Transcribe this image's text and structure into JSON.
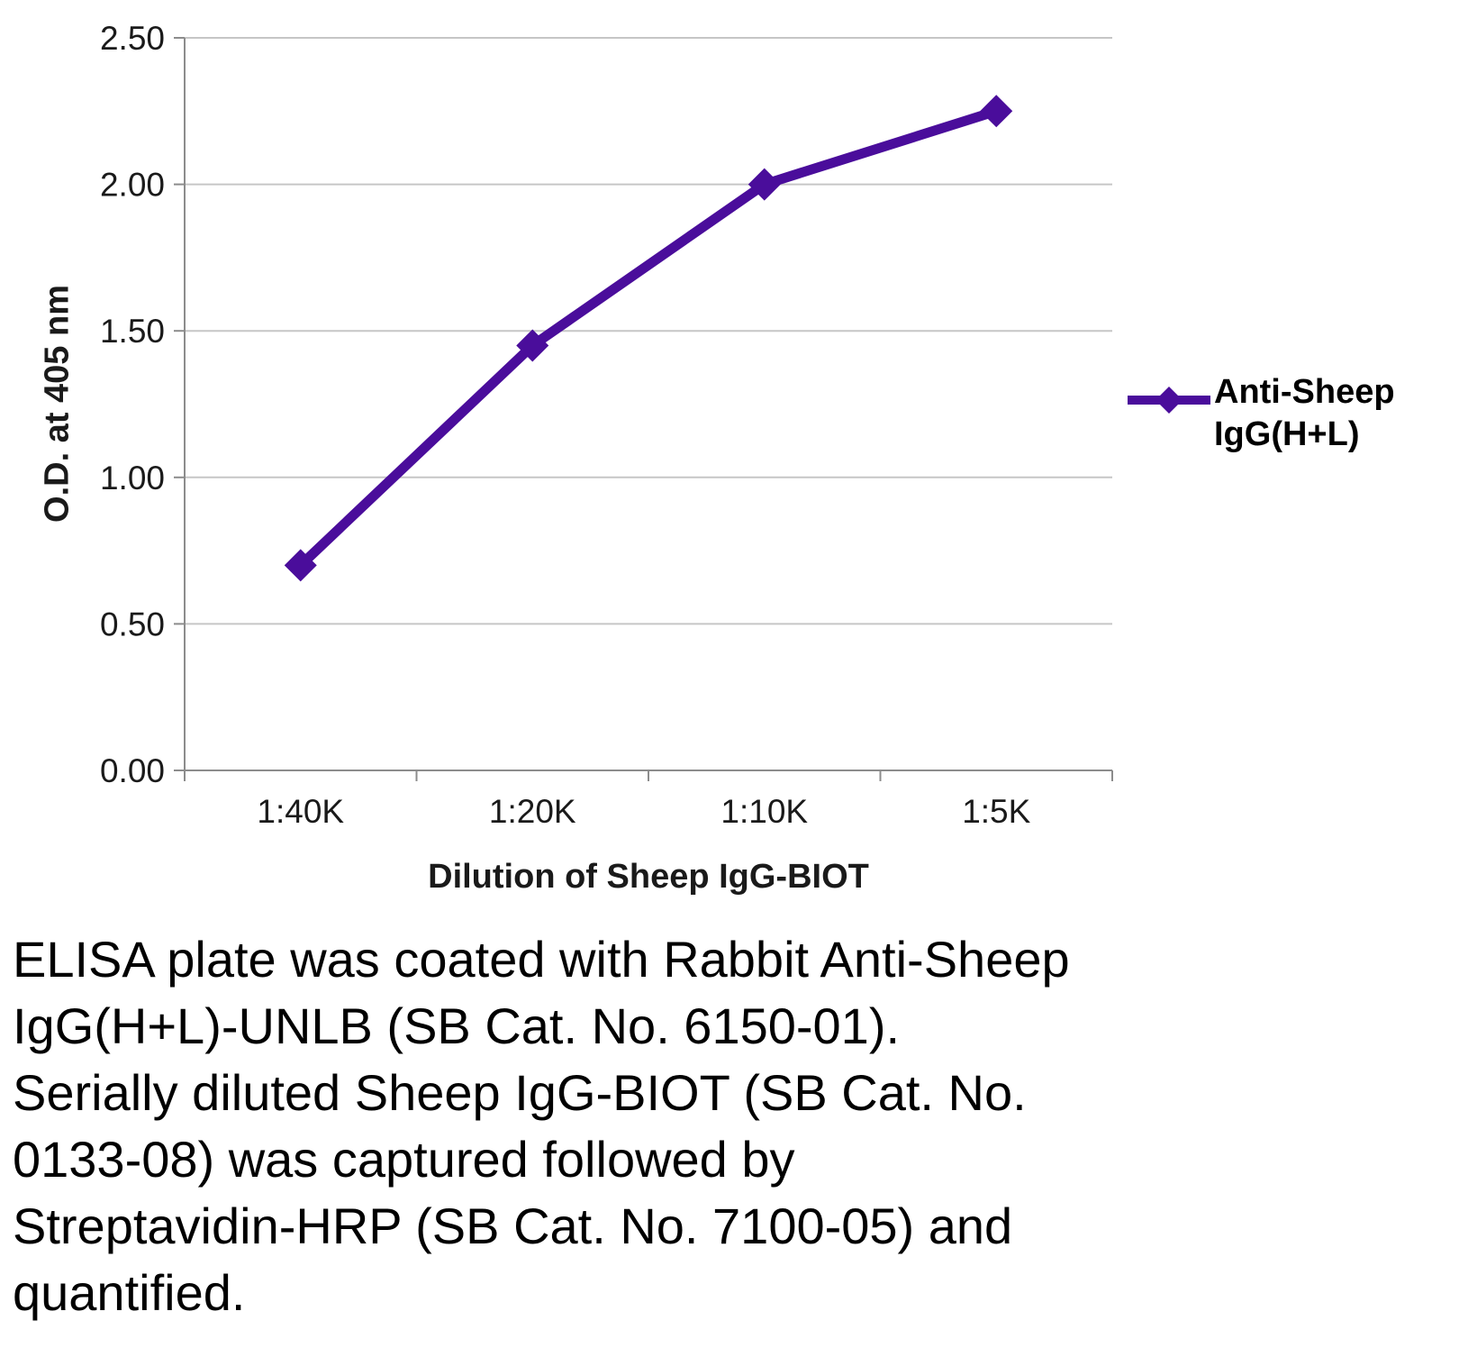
{
  "chart_data": {
    "type": "line",
    "categories": [
      "1:40K",
      "1:20K",
      "1:10K",
      "1:5K"
    ],
    "series": [
      {
        "name": "Anti-Sheep IgG(H+L)",
        "values": [
          0.7,
          1.45,
          2.0,
          2.25
        ],
        "color": "#4a0d9b",
        "marker": "diamond"
      }
    ],
    "title": "",
    "xlabel": "Dilution of Sheep IgG-BIOT",
    "ylabel": "O.D. at 405 nm",
    "ylim": [
      0,
      2.5
    ],
    "yticks": [
      0,
      0.5,
      1.0,
      1.5,
      2.0,
      2.5
    ],
    "ytick_labels": [
      "0.00",
      "0.50",
      "1.00",
      "1.50",
      "2.00",
      "2.50"
    ],
    "grid": "horizontal",
    "legend_position": "right",
    "colors": {
      "gridline": "#c6c6c6",
      "axis": "#8c8c8c",
      "tick_text": "#1a1a1a"
    }
  },
  "legend": {
    "series_label": "Anti-Sheep\nIgG(H+L)"
  },
  "caption": "ELISA plate was coated with Rabbit Anti-Sheep\nIgG(H+L)-UNLB (SB Cat. No. 6150-01).\nSerially diluted Sheep IgG-BIOT (SB Cat. No.\n0133-08) was captured followed by\nStreptavidin-HRP (SB Cat. No. 7100-05) and\nquantified."
}
